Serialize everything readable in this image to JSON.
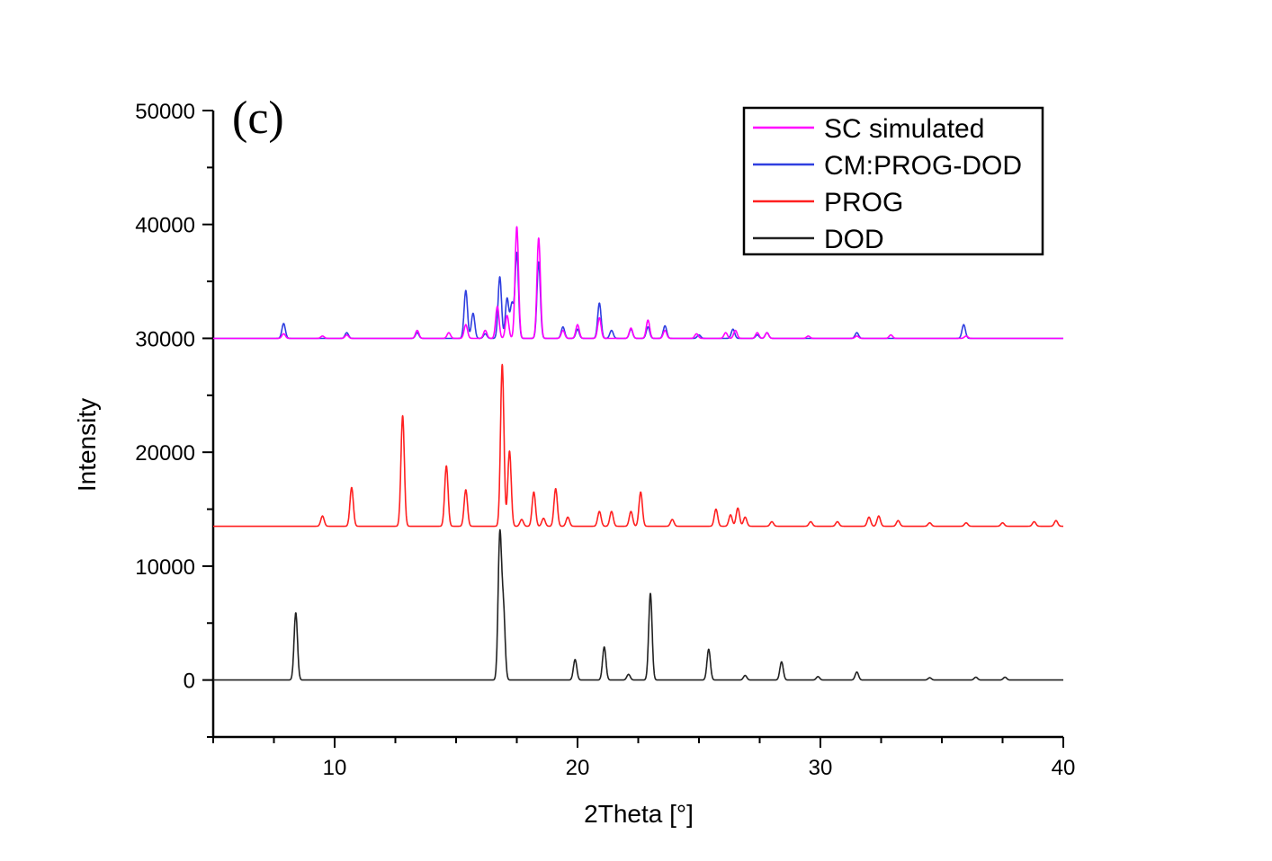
{
  "chart_data": {
    "type": "line",
    "panel_label": "(c)",
    "xlabel": "2Theta [°]",
    "ylabel": "Intensity",
    "xlim": [
      5,
      40
    ],
    "ylim": [
      -5000,
      50000
    ],
    "xticks": [
      10,
      20,
      30,
      40
    ],
    "yticks": [
      0,
      10000,
      20000,
      30000,
      40000,
      50000
    ],
    "legend_position": "top-right",
    "grid": false,
    "series": [
      {
        "name": "SC simulated",
        "color": "#ff00ff",
        "baseline": 30000,
        "peaks": [
          [
            7.9,
            400
          ],
          [
            9.5,
            200
          ],
          [
            10.5,
            300
          ],
          [
            13.4,
            700
          ],
          [
            14.7,
            500
          ],
          [
            15.4,
            1200
          ],
          [
            16.2,
            700
          ],
          [
            16.7,
            2800
          ],
          [
            17.1,
            2000
          ],
          [
            17.5,
            9800
          ],
          [
            18.4,
            8800
          ],
          [
            19.4,
            700
          ],
          [
            20.0,
            1200
          ],
          [
            20.9,
            1800
          ],
          [
            22.2,
            900
          ],
          [
            22.9,
            1600
          ],
          [
            23.6,
            700
          ],
          [
            24.9,
            400
          ],
          [
            26.1,
            500
          ],
          [
            26.5,
            700
          ],
          [
            27.4,
            500
          ],
          [
            27.8,
            500
          ],
          [
            29.5,
            200
          ],
          [
            31.5,
            200
          ],
          [
            32.9,
            300
          ],
          [
            36.0,
            200
          ]
        ]
      },
      {
        "name": "CM:PROG-DOD",
        "color": "#2f3fe0",
        "baseline": 30000,
        "peaks": [
          [
            7.9,
            1300
          ],
          [
            10.5,
            500
          ],
          [
            13.4,
            500
          ],
          [
            15.4,
            4200
          ],
          [
            15.7,
            2200
          ],
          [
            16.2,
            400
          ],
          [
            16.8,
            5400
          ],
          [
            17.1,
            3500
          ],
          [
            17.3,
            3000
          ],
          [
            17.5,
            7500
          ],
          [
            18.4,
            6700
          ],
          [
            19.4,
            1000
          ],
          [
            20.0,
            800
          ],
          [
            20.9,
            3100
          ],
          [
            21.4,
            700
          ],
          [
            22.2,
            800
          ],
          [
            22.9,
            1000
          ],
          [
            23.6,
            1100
          ],
          [
            25.0,
            300
          ],
          [
            26.4,
            800
          ],
          [
            27.4,
            300
          ],
          [
            27.8,
            500
          ],
          [
            31.5,
            500
          ],
          [
            35.9,
            1200
          ]
        ]
      },
      {
        "name": "PROG",
        "color": "#ff2020",
        "baseline": 13500,
        "peaks": [
          [
            9.5,
            900
          ],
          [
            10.7,
            3400
          ],
          [
            12.8,
            9700
          ],
          [
            14.6,
            5300
          ],
          [
            15.4,
            3200
          ],
          [
            16.9,
            14200
          ],
          [
            17.2,
            6600
          ],
          [
            17.7,
            600
          ],
          [
            18.2,
            3000
          ],
          [
            18.6,
            700
          ],
          [
            19.1,
            3300
          ],
          [
            19.6,
            800
          ],
          [
            20.9,
            1300
          ],
          [
            21.4,
            1300
          ],
          [
            22.2,
            1300
          ],
          [
            22.6,
            3000
          ],
          [
            23.9,
            600
          ],
          [
            25.7,
            1500
          ],
          [
            26.3,
            1000
          ],
          [
            26.6,
            1600
          ],
          [
            26.9,
            800
          ],
          [
            28.0,
            400
          ],
          [
            29.6,
            400
          ],
          [
            30.7,
            400
          ],
          [
            32.0,
            800
          ],
          [
            32.4,
            900
          ],
          [
            33.2,
            500
          ],
          [
            34.5,
            300
          ],
          [
            36.0,
            300
          ],
          [
            37.5,
            300
          ],
          [
            38.8,
            400
          ],
          [
            39.7,
            500
          ]
        ]
      },
      {
        "name": "DOD",
        "color": "#222222",
        "baseline": 0,
        "peaks": [
          [
            8.4,
            5900
          ],
          [
            16.8,
            12500
          ],
          [
            16.95,
            6000
          ],
          [
            19.9,
            1800
          ],
          [
            21.1,
            2900
          ],
          [
            22.1,
            500
          ],
          [
            23.0,
            7600
          ],
          [
            25.4,
            2700
          ],
          [
            26.9,
            400
          ],
          [
            28.4,
            1600
          ],
          [
            29.9,
            300
          ],
          [
            31.5,
            700
          ],
          [
            34.5,
            200
          ],
          [
            36.4,
            250
          ],
          [
            37.6,
            250
          ]
        ]
      }
    ]
  }
}
